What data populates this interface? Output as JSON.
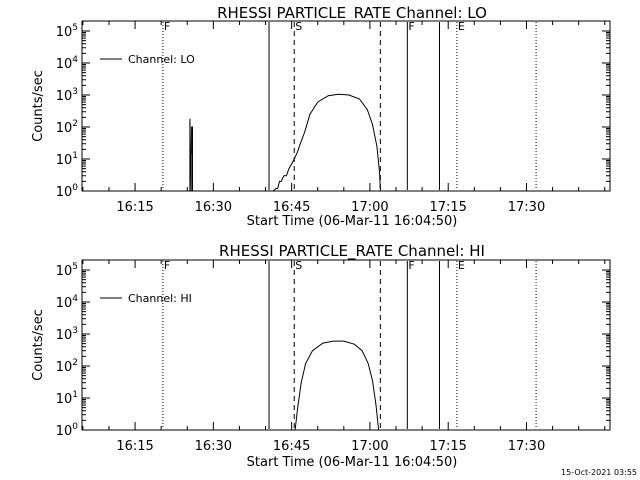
{
  "footer": {
    "timestamp": "15-Oct-2021 03:55"
  },
  "chart_data": [
    {
      "type": "line",
      "title": "RHESSI PARTICLE_RATE Channel: LO",
      "xlabel": "Start Time (06-Mar-11 16:04:50)",
      "ylabel": "Counts/sec",
      "legend": {
        "label": "Channel: LO",
        "position": "top-left"
      },
      "scale": "log",
      "xlim": [
        "16:04:50",
        "17:46:00"
      ],
      "ylim": [
        1,
        100000
      ],
      "x_ticks": [
        "16:15",
        "16:30",
        "16:45",
        "17:00",
        "17:15",
        "17:30"
      ],
      "y_ticks": [
        "10^0",
        "10^1",
        "10^2",
        "10^3",
        "10^4",
        "10^5"
      ],
      "markers": [
        {
          "label": "F",
          "time": "16:20:20",
          "style": "dotted"
        },
        {
          "label": "",
          "time": "16:40:40",
          "style": "solid"
        },
        {
          "label": "S",
          "time": "16:45:30",
          "style": "dashed"
        },
        {
          "label": "",
          "time": "17:02:00",
          "style": "dashed"
        },
        {
          "label": "F",
          "time": "17:07:10",
          "style": "solid"
        },
        {
          "label": "",
          "time": "17:13:20",
          "style": "solid"
        },
        {
          "label": "E",
          "time": "17:16:40",
          "style": "dotted"
        },
        {
          "label": "",
          "time": "17:31:50",
          "style": "dotted"
        }
      ],
      "series": [
        {
          "name": "Channel: LO",
          "points": [
            [
              "16:25:30",
              1
            ],
            [
              "16:25:30",
              180
            ],
            [
              "16:25:45",
              1
            ],
            [
              "16:25:45",
              15
            ],
            [
              "16:25:50",
              15
            ],
            [
              "16:25:50",
              100
            ],
            [
              "16:26:00",
              100
            ],
            [
              "16:26:00",
              1
            ],
            [
              "16:41:30",
              1
            ],
            [
              "16:42:00",
              1.2
            ],
            [
              "16:42:20",
              1.2
            ],
            [
              "16:42:40",
              2
            ],
            [
              "16:43:00",
              2
            ],
            [
              "16:43:30",
              3
            ],
            [
              "16:44:00",
              3
            ],
            [
              "16:44:30",
              5
            ],
            [
              "16:45:00",
              7
            ],
            [
              "16:45:30",
              10
            ],
            [
              "16:46:00",
              15
            ],
            [
              "16:46:40",
              30
            ],
            [
              "16:47:30",
              70
            ],
            [
              "16:48:30",
              250
            ],
            [
              "16:50:00",
              600
            ],
            [
              "16:52:00",
              950
            ],
            [
              "16:54:00",
              1050
            ],
            [
              "16:56:00",
              1000
            ],
            [
              "16:58:00",
              750
            ],
            [
              "16:59:30",
              350
            ],
            [
              "17:00:30",
              120
            ],
            [
              "17:01:20",
              25
            ],
            [
              "17:01:50",
              4
            ],
            [
              "17:02:00",
              1
            ]
          ]
        }
      ]
    },
    {
      "type": "line",
      "title": "RHESSI PARTICLE_RATE Channel: HI",
      "xlabel": "Start Time (06-Mar-11 16:04:50)",
      "ylabel": "Counts/sec",
      "legend": {
        "label": "Channel: HI",
        "position": "top-left"
      },
      "scale": "log",
      "xlim": [
        "16:04:50",
        "17:46:00"
      ],
      "ylim": [
        1,
        100000
      ],
      "x_ticks": [
        "16:15",
        "16:30",
        "16:45",
        "17:00",
        "17:15",
        "17:30"
      ],
      "y_ticks": [
        "10^0",
        "10^1",
        "10^2",
        "10^3",
        "10^4",
        "10^5"
      ],
      "markers": [
        {
          "label": "F",
          "time": "16:20:20",
          "style": "dotted"
        },
        {
          "label": "",
          "time": "16:40:40",
          "style": "solid"
        },
        {
          "label": "S",
          "time": "16:45:30",
          "style": "dashed"
        },
        {
          "label": "",
          "time": "17:02:00",
          "style": "dashed"
        },
        {
          "label": "F",
          "time": "17:07:10",
          "style": "solid"
        },
        {
          "label": "",
          "time": "17:13:20",
          "style": "solid"
        },
        {
          "label": "E",
          "time": "17:16:40",
          "style": "dotted"
        },
        {
          "label": "",
          "time": "17:31:50",
          "style": "dotted"
        }
      ],
      "series": [
        {
          "name": "Channel: HI",
          "points": [
            [
              "16:45:40",
              1
            ],
            [
              "16:46:10",
              5
            ],
            [
              "16:46:50",
              30
            ],
            [
              "16:47:40",
              120
            ],
            [
              "16:49:00",
              300
            ],
            [
              "16:51:00",
              520
            ],
            [
              "16:53:00",
              600
            ],
            [
              "16:55:00",
              600
            ],
            [
              "16:57:00",
              480
            ],
            [
              "16:58:30",
              300
            ],
            [
              "16:59:40",
              120
            ],
            [
              "17:00:30",
              35
            ],
            [
              "17:01:10",
              6
            ],
            [
              "17:01:40",
              1
            ]
          ]
        }
      ]
    }
  ]
}
